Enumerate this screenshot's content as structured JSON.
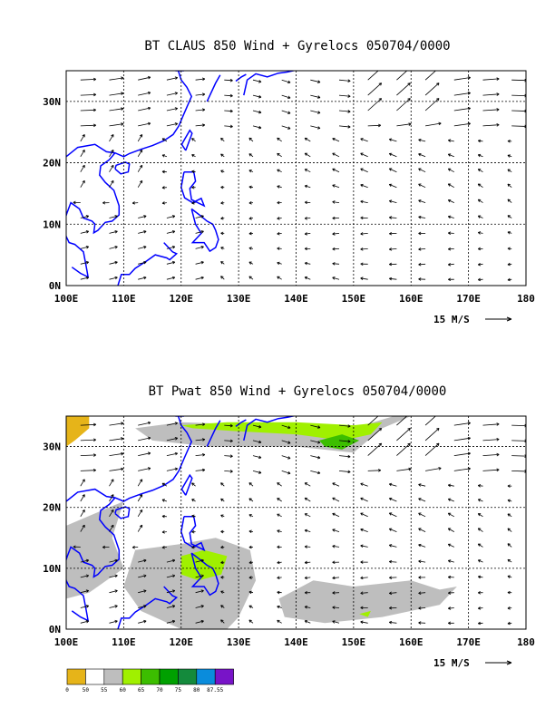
{
  "colors": {
    "coast": "#0000ff",
    "grid": "#000000",
    "arrow": "#000000",
    "shade_0": "#e6b419",
    "shade_50": "#ffffff",
    "shade_55": "#bebebe",
    "shade_60": "#a0f000",
    "shade_65": "#3cbe00",
    "shade_70": "#00a000",
    "shade_75": "#148a3c",
    "shade_80": "#0a8cdc",
    "shade_85": "#7814c8"
  },
  "chart_data": [
    {
      "type": "vector",
      "title": "BT CLAUS 850 Wind + Gyrelocs 050704/0000",
      "xlim": [
        100,
        180
      ],
      "ylim": [
        0,
        35
      ],
      "x_ticks": [
        "100E",
        "110E",
        "120E",
        "130E",
        "140E",
        "150E",
        "160E",
        "170E",
        "180"
      ],
      "y_ticks": [
        "0N",
        "10N",
        "20N",
        "30N"
      ],
      "reference_vector": "15 M/S",
      "grid": "dotted"
    },
    {
      "type": "vector",
      "title": "BT Pwat 850 Wind + Gyrelocs 050704/0000",
      "xlim": [
        100,
        180
      ],
      "ylim": [
        0,
        35
      ],
      "x_ticks": [
        "100E",
        "110E",
        "120E",
        "130E",
        "140E",
        "150E",
        "160E",
        "170E",
        "180"
      ],
      "y_ticks": [
        "0N",
        "10N",
        "20N",
        "30N"
      ],
      "reference_vector": "15 M/S",
      "grid": "dotted",
      "colorbar": [
        "0",
        "50",
        "55",
        "60",
        "65",
        "70",
        "75",
        "80",
        "87.55"
      ]
    }
  ]
}
